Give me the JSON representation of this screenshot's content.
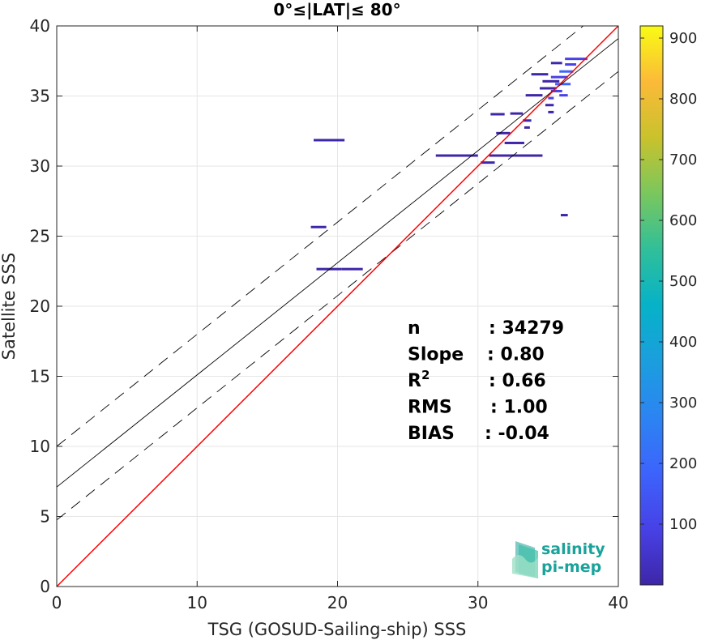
{
  "chart_data": {
    "type": "scatter",
    "title": "0°≤|LAT|≤ 80°",
    "xlabel": "TSG (GOSUD-Sailing-ship) SSS",
    "ylabel": "Satellite SSS",
    "xlim": [
      0,
      40
    ],
    "ylim": [
      0,
      40
    ],
    "xticks": [
      "0",
      "10",
      "20",
      "30",
      "40"
    ],
    "yticks": [
      "0",
      "5",
      "10",
      "15",
      "20",
      "25",
      "30",
      "35",
      "40"
    ],
    "grid": true,
    "colorbar": {
      "range": [
        0,
        920
      ],
      "ticks": [
        "100",
        "200",
        "300",
        "400",
        "500",
        "600",
        "700",
        "800",
        "900"
      ],
      "colormap": "parula"
    },
    "lines": {
      "identity": {
        "color": "#ff0000",
        "x": [
          0,
          40
        ],
        "y": [
          0,
          40
        ]
      },
      "fit": {
        "color": "#000000",
        "x": [
          0,
          40
        ],
        "y": [
          7.1,
          39.1
        ]
      },
      "fit_upper": {
        "color": "#000000",
        "dash": true,
        "x": [
          0,
          40
        ],
        "y": [
          10.0,
          42.0
        ]
      },
      "fit_lower": {
        "color": "#000000",
        "dash": true,
        "x": [
          0,
          40
        ],
        "y": [
          4.75,
          36.75
        ]
      }
    },
    "density_bins": [
      {
        "x0": 18.1,
        "x1": 19.2,
        "y": 25.65,
        "count": 30
      },
      {
        "x0": 18.5,
        "x1": 20.3,
        "y": 22.65,
        "count": 20
      },
      {
        "x0": 20.3,
        "x1": 21.8,
        "y": 22.65,
        "count": 15
      },
      {
        "x0": 18.3,
        "x1": 20.5,
        "y": 31.85,
        "count": 10
      },
      {
        "x0": 27.0,
        "x1": 30.0,
        "y": 30.75,
        "count": 10
      },
      {
        "x0": 30.2,
        "x1": 31.2,
        "y": 30.25,
        "count": 40
      },
      {
        "x0": 30.8,
        "x1": 32.6,
        "y": 30.75,
        "count": 25
      },
      {
        "x0": 32.6,
        "x1": 34.6,
        "y": 30.75,
        "count": 35
      },
      {
        "x0": 31.3,
        "x1": 32.3,
        "y": 32.35,
        "count": 40
      },
      {
        "x0": 31.9,
        "x1": 33.3,
        "y": 31.65,
        "count": 40
      },
      {
        "x0": 30.9,
        "x1": 31.9,
        "y": 33.7,
        "count": 40
      },
      {
        "x0": 32.3,
        "x1": 33.2,
        "y": 33.75,
        "count": 30
      },
      {
        "x0": 33.2,
        "x1": 33.8,
        "y": 33.25,
        "count": 30
      },
      {
        "x0": 33.3,
        "x1": 33.7,
        "y": 32.75,
        "count": 30
      },
      {
        "x0": 33.4,
        "x1": 34.6,
        "y": 35.05,
        "count": 40
      },
      {
        "x0": 34.4,
        "x1": 35.6,
        "y": 35.55,
        "count": 35
      },
      {
        "x0": 34.6,
        "x1": 35.8,
        "y": 36.05,
        "count": 30
      },
      {
        "x0": 33.8,
        "x1": 35.0,
        "y": 36.55,
        "count": 35
      },
      {
        "x0": 35.2,
        "x1": 36.4,
        "y": 36.35,
        "count": 120
      },
      {
        "x0": 35.5,
        "x1": 36.6,
        "y": 35.85,
        "count": 180
      },
      {
        "x0": 35.2,
        "x1": 36.0,
        "y": 35.35,
        "count": 100
      },
      {
        "x0": 35.8,
        "x1": 36.8,
        "y": 36.75,
        "count": 150
      },
      {
        "x0": 36.2,
        "x1": 37.0,
        "y": 37.25,
        "count": 120
      },
      {
        "x0": 35.2,
        "x1": 36.0,
        "y": 37.35,
        "count": 40
      },
      {
        "x0": 36.2,
        "x1": 37.8,
        "y": 37.65,
        "count": 60
      },
      {
        "x0": 35.8,
        "x1": 36.4,
        "y": 35.05,
        "count": 60
      },
      {
        "x0": 35.0,
        "x1": 35.4,
        "y": 34.85,
        "count": 80
      },
      {
        "x0": 34.8,
        "x1": 35.4,
        "y": 34.35,
        "count": 30
      },
      {
        "x0": 35.0,
        "x1": 35.4,
        "y": 33.85,
        "count": 30
      },
      {
        "x0": 35.9,
        "x1": 36.4,
        "y": 26.5,
        "count": 30
      }
    ],
    "stats": [
      {
        "label": "n",
        "value": ": 34279"
      },
      {
        "label": "Slope",
        "value": ": 0.80"
      },
      {
        "label": "R",
        "sup": "2",
        "value": ": 0.66"
      },
      {
        "label": "RMS",
        "value": ": 1.00"
      },
      {
        "label": "BIAS",
        "value": ": -0.04"
      }
    ]
  },
  "logo": {
    "line1": "salinity",
    "line2": "pi-mep"
  },
  "colors": {
    "identity": "#ff0000",
    "fit": "#000000",
    "logo": "#1aa39b"
  }
}
